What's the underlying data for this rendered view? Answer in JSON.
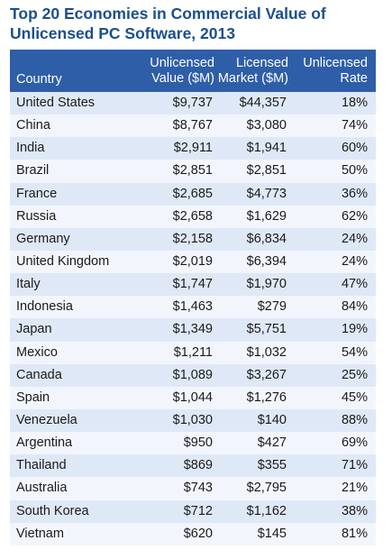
{
  "chart_data": {
    "type": "table",
    "title_lines": [
      "Top 20 Economies in Commercial Value of",
      "Unlicensed PC Software, 2013"
    ],
    "columns": [
      {
        "line1": "",
        "line2": "Country"
      },
      {
        "line1": "Unlicensed",
        "line2": "Value ($M)"
      },
      {
        "line1": "Licensed",
        "line2": "Market ($M)"
      },
      {
        "line1": "Unlicensed",
        "line2": "Rate"
      }
    ],
    "rows": [
      {
        "country": "United States",
        "unlicensed_value": "$9,737",
        "licensed_market": "$44,357",
        "unlicensed_rate": "18%"
      },
      {
        "country": "China",
        "unlicensed_value": "$8,767",
        "licensed_market": "$3,080",
        "unlicensed_rate": "74%"
      },
      {
        "country": "India",
        "unlicensed_value": "$2,911",
        "licensed_market": "$1,941",
        "unlicensed_rate": "60%"
      },
      {
        "country": "Brazil",
        "unlicensed_value": "$2,851",
        "licensed_market": "$2,851",
        "unlicensed_rate": "50%"
      },
      {
        "country": "France",
        "unlicensed_value": "$2,685",
        "licensed_market": "$4,773",
        "unlicensed_rate": "36%"
      },
      {
        "country": "Russia",
        "unlicensed_value": "$2,658",
        "licensed_market": "$1,629",
        "unlicensed_rate": "62%"
      },
      {
        "country": "Germany",
        "unlicensed_value": "$2,158",
        "licensed_market": "$6,834",
        "unlicensed_rate": "24%"
      },
      {
        "country": "United Kingdom",
        "unlicensed_value": "$2,019",
        "licensed_market": "$6,394",
        "unlicensed_rate": "24%"
      },
      {
        "country": "Italy",
        "unlicensed_value": "$1,747",
        "licensed_market": "$1,970",
        "unlicensed_rate": "47%"
      },
      {
        "country": "Indonesia",
        "unlicensed_value": "$1,463",
        "licensed_market": "$279",
        "unlicensed_rate": "84%"
      },
      {
        "country": "Japan",
        "unlicensed_value": "$1,349",
        "licensed_market": "$5,751",
        "unlicensed_rate": "19%"
      },
      {
        "country": "Mexico",
        "unlicensed_value": "$1,211",
        "licensed_market": "$1,032",
        "unlicensed_rate": "54%"
      },
      {
        "country": "Canada",
        "unlicensed_value": "$1,089",
        "licensed_market": "$3,267",
        "unlicensed_rate": "25%"
      },
      {
        "country": "Spain",
        "unlicensed_value": "$1,044",
        "licensed_market": "$1,276",
        "unlicensed_rate": "45%"
      },
      {
        "country": "Venezuela",
        "unlicensed_value": "$1,030",
        "licensed_market": "$140",
        "unlicensed_rate": "88%"
      },
      {
        "country": "Argentina",
        "unlicensed_value": "$950",
        "licensed_market": "$427",
        "unlicensed_rate": "69%"
      },
      {
        "country": "Thailand",
        "unlicensed_value": "$869",
        "licensed_market": "$355",
        "unlicensed_rate": "71%"
      },
      {
        "country": "Australia",
        "unlicensed_value": "$743",
        "licensed_market": "$2,795",
        "unlicensed_rate": "21%"
      },
      {
        "country": "South Korea",
        "unlicensed_value": "$712",
        "licensed_market": "$1,162",
        "unlicensed_rate": "38%"
      },
      {
        "country": "Vietnam",
        "unlicensed_value": "$620",
        "licensed_market": "$145",
        "unlicensed_rate": "81%"
      }
    ],
    "colors": {
      "title": "#1a4f8f",
      "header_bg": "#2f5ea8",
      "header_text": "#ffffff",
      "row_a": "#dfe8f6",
      "row_b": "#f2f6fc"
    }
  }
}
